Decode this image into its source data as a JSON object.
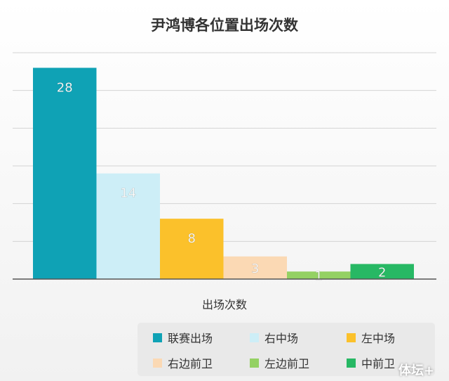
{
  "title": "尹鸿博各位置出场次数",
  "watermark": "体坛+",
  "chart_data": {
    "type": "bar",
    "title": "尹鸿博各位置出场次数",
    "xlabel": "出场次数",
    "ylabel": "",
    "categories": [
      "联赛出场",
      "右中场",
      "左中场",
      "右边前卫",
      "左边前卫",
      "中前卫"
    ],
    "values": [
      28,
      14,
      8,
      3,
      1,
      2
    ],
    "colors": [
      "#0fa2b5",
      "#cdeef7",
      "#fbc12b",
      "#fbd9b4",
      "#94d163",
      "#27b864"
    ],
    "ylim": [
      0,
      30
    ],
    "grid": true,
    "data_labels": true,
    "legend": "bottom-right"
  }
}
